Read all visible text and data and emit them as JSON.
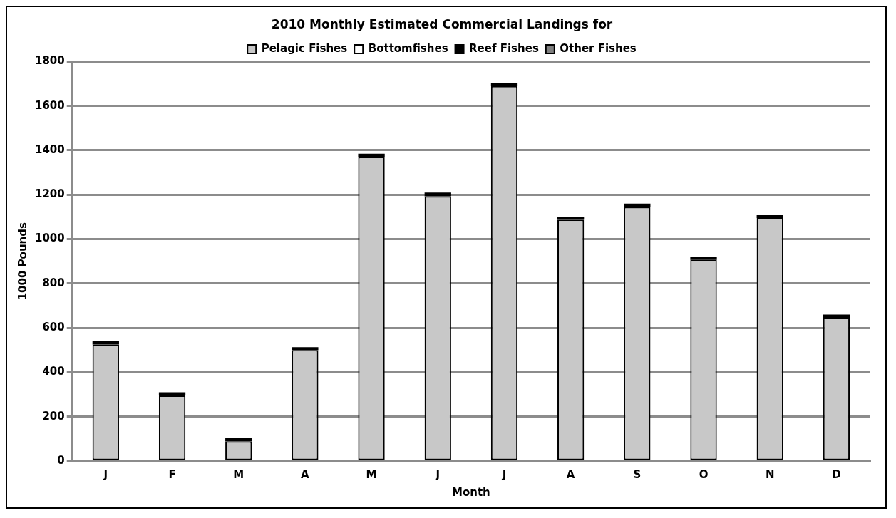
{
  "chart_data": {
    "type": "bar",
    "title": "2010 Monthly Estimated Commercial Landings for",
    "xlabel": "Month",
    "ylabel": "1000 Pounds",
    "categories": [
      "J",
      "F",
      "M",
      "A",
      "M",
      "J",
      "J",
      "A",
      "S",
      "O",
      "N",
      "D"
    ],
    "stacked": true,
    "legend": "top",
    "grid": "y",
    "ylim": [
      0,
      1800
    ],
    "yticks": [
      0,
      200,
      400,
      600,
      800,
      1000,
      1200,
      1400,
      1600,
      1800
    ],
    "series": [
      {
        "name": "Pelagic Fishes",
        "color": "#c8c8c8",
        "values": [
          525,
          295,
          88,
          500,
          1370,
          1193,
          1690,
          1088,
          1145,
          906,
          1095,
          645
        ]
      },
      {
        "name": "Bottomfishes",
        "color": "#ffffff",
        "values": [
          null,
          null,
          null,
          null,
          null,
          null,
          null,
          null,
          null,
          null,
          null,
          null
        ]
      },
      {
        "name": "Reef Fishes",
        "color": "#000000",
        "values": [
          15,
          15,
          15,
          13,
          15,
          17,
          14,
          13,
          15,
          12,
          13,
          15
        ]
      },
      {
        "name": "Other Fishes",
        "color": "#808080",
        "values": [
          null,
          null,
          null,
          null,
          null,
          null,
          null,
          null,
          null,
          null,
          null,
          null
        ]
      }
    ]
  }
}
